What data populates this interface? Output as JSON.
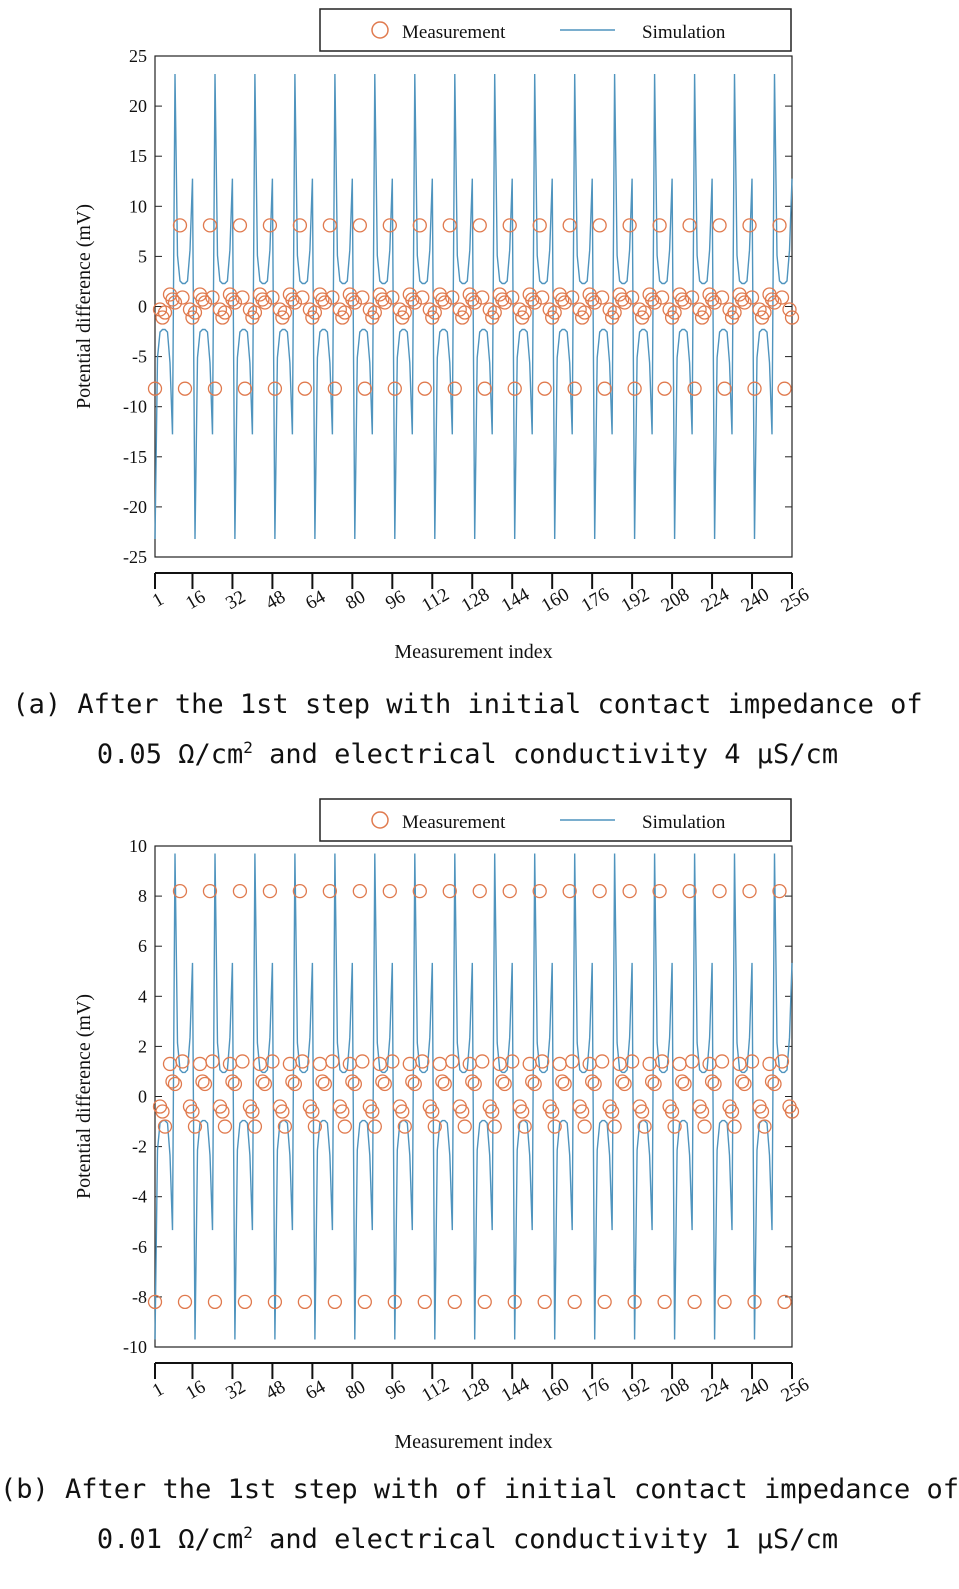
{
  "charts": [
    {
      "id": "a",
      "legend": {
        "measurement": "Measurement",
        "simulation": "Simulation",
        "placement": "top"
      },
      "ylabel": "Potential difference (mV)",
      "xlabel": "Measurement index",
      "caption": {
        "line1": "(a) After the 1st step with initial contact impedance of",
        "line2_a": "0.05 Ω/cm",
        "line2_sup": "2",
        "line2_b": " and electrical conductivity 4 μS/cm"
      }
    },
    {
      "id": "b",
      "legend": {
        "measurement": "Measurement",
        "simulation": "Simulation",
        "placement": "top"
      },
      "ylabel": "Potential difference (mV)",
      "xlabel": "Measurement index",
      "caption": {
        "line1": "(b) After the 1st step with of initial contact impedance of",
        "line2_a": "0.01 Ω/cm",
        "line2_sup": "2",
        "line2_b": " and electrical conductivity 1 μS/cm"
      }
    }
  ],
  "chart_data": [
    {
      "type": "line",
      "series": [
        {
          "name": "Measurement",
          "marker": "circle",
          "color": "#E07A4E",
          "pattern": [
            -8.2,
            -0.8,
            -0.3,
            -1.1,
            -0.6,
            0.5,
            1.2,
            0.7,
            0.4,
            7.9,
            8.1,
            0.9
          ]
        },
        {
          "name": "Simulation",
          "marker": "line",
          "color": "#4F94BE",
          "peaks": [
            23.2,
            -23.2
          ]
        }
      ],
      "x_ticks": [
        1,
        16,
        32,
        48,
        64,
        80,
        96,
        112,
        128,
        144,
        160,
        176,
        192,
        208,
        224,
        240,
        256
      ],
      "y_ticks": [
        -25,
        -20,
        -15,
        -10,
        -5,
        0,
        5,
        10,
        15,
        20,
        25
      ],
      "xlim": [
        1,
        256
      ],
      "ylim": [
        -25,
        25
      ],
      "grid": false
    },
    {
      "type": "line",
      "series": [
        {
          "name": "Measurement",
          "marker": "circle",
          "color": "#E07A4E",
          "pattern": [
            -8.2,
            -1.3,
            -0.4,
            -0.6,
            -1.2,
            0.4,
            1.3,
            0.6,
            0.5,
            7.9,
            8.2,
            1.4
          ]
        },
        {
          "name": "Simulation",
          "marker": "line",
          "color": "#4F94BE",
          "peaks": [
            9.7,
            -9.7
          ]
        }
      ],
      "x_ticks": [
        1,
        16,
        32,
        48,
        64,
        80,
        96,
        112,
        128,
        144,
        160,
        176,
        192,
        208,
        224,
        240,
        256
      ],
      "y_ticks": [
        -10,
        -8,
        -6,
        -4,
        -2,
        0,
        2,
        4,
        6,
        8,
        10
      ],
      "xlim": [
        1,
        256
      ],
      "ylim": [
        -10,
        10
      ],
      "grid": false
    }
  ]
}
